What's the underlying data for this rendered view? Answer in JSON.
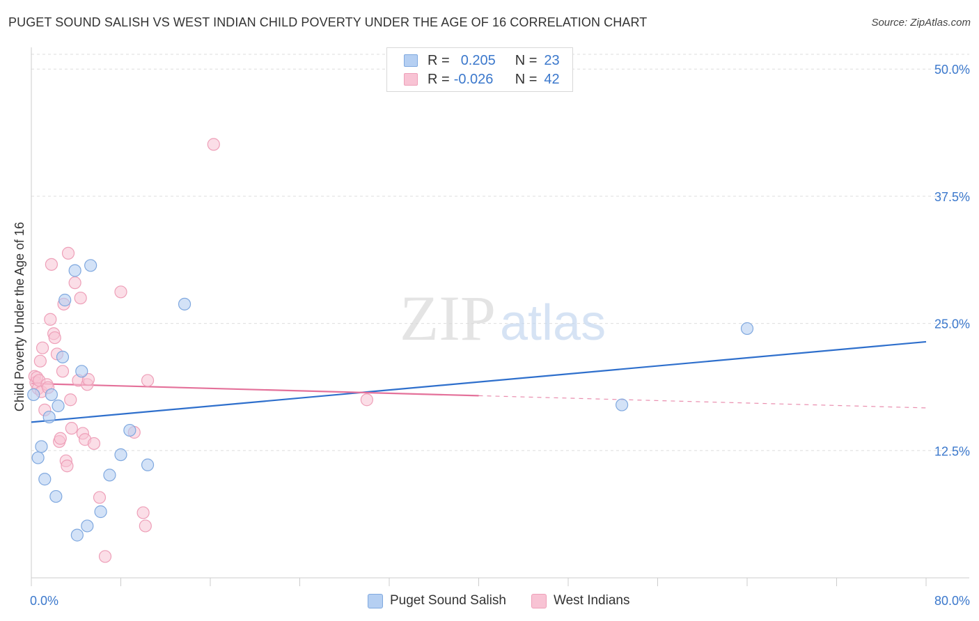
{
  "title": "PUGET SOUND SALISH VS WEST INDIAN CHILD POVERTY UNDER THE AGE OF 16 CORRELATION CHART",
  "source": "Source: ZipAtlas.com",
  "watermark": {
    "zip": "ZIP",
    "atlas": "atlas"
  },
  "legend": {
    "rows": [
      {
        "r_label": "R =",
        "r_value": "0.205",
        "n_label": "N =",
        "n_value": "23"
      },
      {
        "r_label": "R =",
        "r_value": "-0.026",
        "n_label": "N =",
        "n_value": "42"
      }
    ]
  },
  "bottom_legend": {
    "series1": "Puget Sound Salish",
    "series2": "West Indians"
  },
  "colors": {
    "blue_fill": "#b5cff2",
    "blue_stroke": "#7fa8df",
    "blue_line": "#2e6fcc",
    "pink_fill": "#f8c3d4",
    "pink_stroke": "#ee9fb8",
    "pink_line": "#e4719a",
    "axis_text": "#3b78cc",
    "grid": "#dddddd"
  },
  "chart_data": {
    "type": "scatter",
    "title": "PUGET SOUND SALISH VS WEST INDIAN CHILD POVERTY UNDER THE AGE OF 16 CORRELATION CHART",
    "xlabel": "",
    "ylabel": "Child Poverty Under the Age of 16",
    "xlim": [
      0,
      80
    ],
    "ylim": [
      0,
      52
    ],
    "x_tick_labels": [
      "0.0%",
      "80.0%"
    ],
    "y_ticks": [
      12.5,
      25.0,
      37.5,
      50.0
    ],
    "y_tick_labels": [
      "12.5%",
      "25.0%",
      "37.5%",
      "50.0%"
    ],
    "series": [
      {
        "name": "Puget Sound Salish",
        "R": 0.205,
        "N": 23,
        "points": [
          [
            0.2,
            18.0
          ],
          [
            0.6,
            11.8
          ],
          [
            0.9,
            12.9
          ],
          [
            1.2,
            9.7
          ],
          [
            1.6,
            15.8
          ],
          [
            1.8,
            18.0
          ],
          [
            2.2,
            8.0
          ],
          [
            2.4,
            16.9
          ],
          [
            2.8,
            21.7
          ],
          [
            3.0,
            27.3
          ],
          [
            3.9,
            30.2
          ],
          [
            4.1,
            4.2
          ],
          [
            4.5,
            20.3
          ],
          [
            5.0,
            5.1
          ],
          [
            5.3,
            30.7
          ],
          [
            6.2,
            6.5
          ],
          [
            7.0,
            10.1
          ],
          [
            8.0,
            12.1
          ],
          [
            8.8,
            14.5
          ],
          [
            10.4,
            11.1
          ],
          [
            13.7,
            26.9
          ],
          [
            52.8,
            17.0
          ],
          [
            64.0,
            24.5
          ]
        ],
        "trend": {
          "x": [
            0,
            80
          ],
          "y": [
            15.3,
            23.2
          ],
          "style": "solid"
        }
      },
      {
        "name": "West Indians",
        "R": -0.026,
        "N": 42,
        "points": [
          [
            0.3,
            19.8
          ],
          [
            0.4,
            19.2
          ],
          [
            0.5,
            19.7
          ],
          [
            0.6,
            18.6
          ],
          [
            0.7,
            19.4
          ],
          [
            0.8,
            21.3
          ],
          [
            0.9,
            18.3
          ],
          [
            1.0,
            22.6
          ],
          [
            1.2,
            16.5
          ],
          [
            1.4,
            19.0
          ],
          [
            1.5,
            18.7
          ],
          [
            1.7,
            25.4
          ],
          [
            1.8,
            30.8
          ],
          [
            2.0,
            24.0
          ],
          [
            2.1,
            23.6
          ],
          [
            2.3,
            22.0
          ],
          [
            2.5,
            13.4
          ],
          [
            2.6,
            13.7
          ],
          [
            2.8,
            20.3
          ],
          [
            2.9,
            26.9
          ],
          [
            3.1,
            11.5
          ],
          [
            3.2,
            11.0
          ],
          [
            3.3,
            31.9
          ],
          [
            3.5,
            17.5
          ],
          [
            3.6,
            14.7
          ],
          [
            3.9,
            29.0
          ],
          [
            4.2,
            19.4
          ],
          [
            4.4,
            27.5
          ],
          [
            4.6,
            14.2
          ],
          [
            4.8,
            13.6
          ],
          [
            5.0,
            19.0
          ],
          [
            5.1,
            19.5
          ],
          [
            5.6,
            13.2
          ],
          [
            6.1,
            7.9
          ],
          [
            6.6,
            2.1
          ],
          [
            8.0,
            28.1
          ],
          [
            9.2,
            14.3
          ],
          [
            10.0,
            6.4
          ],
          [
            10.2,
            5.1
          ],
          [
            10.4,
            19.4
          ],
          [
            16.3,
            42.6
          ],
          [
            30.0,
            17.5
          ]
        ],
        "trend": {
          "x": [
            0,
            40,
            80
          ],
          "y": [
            19.1,
            17.9,
            16.7
          ],
          "style": "solid-then-dashed"
        }
      }
    ]
  }
}
